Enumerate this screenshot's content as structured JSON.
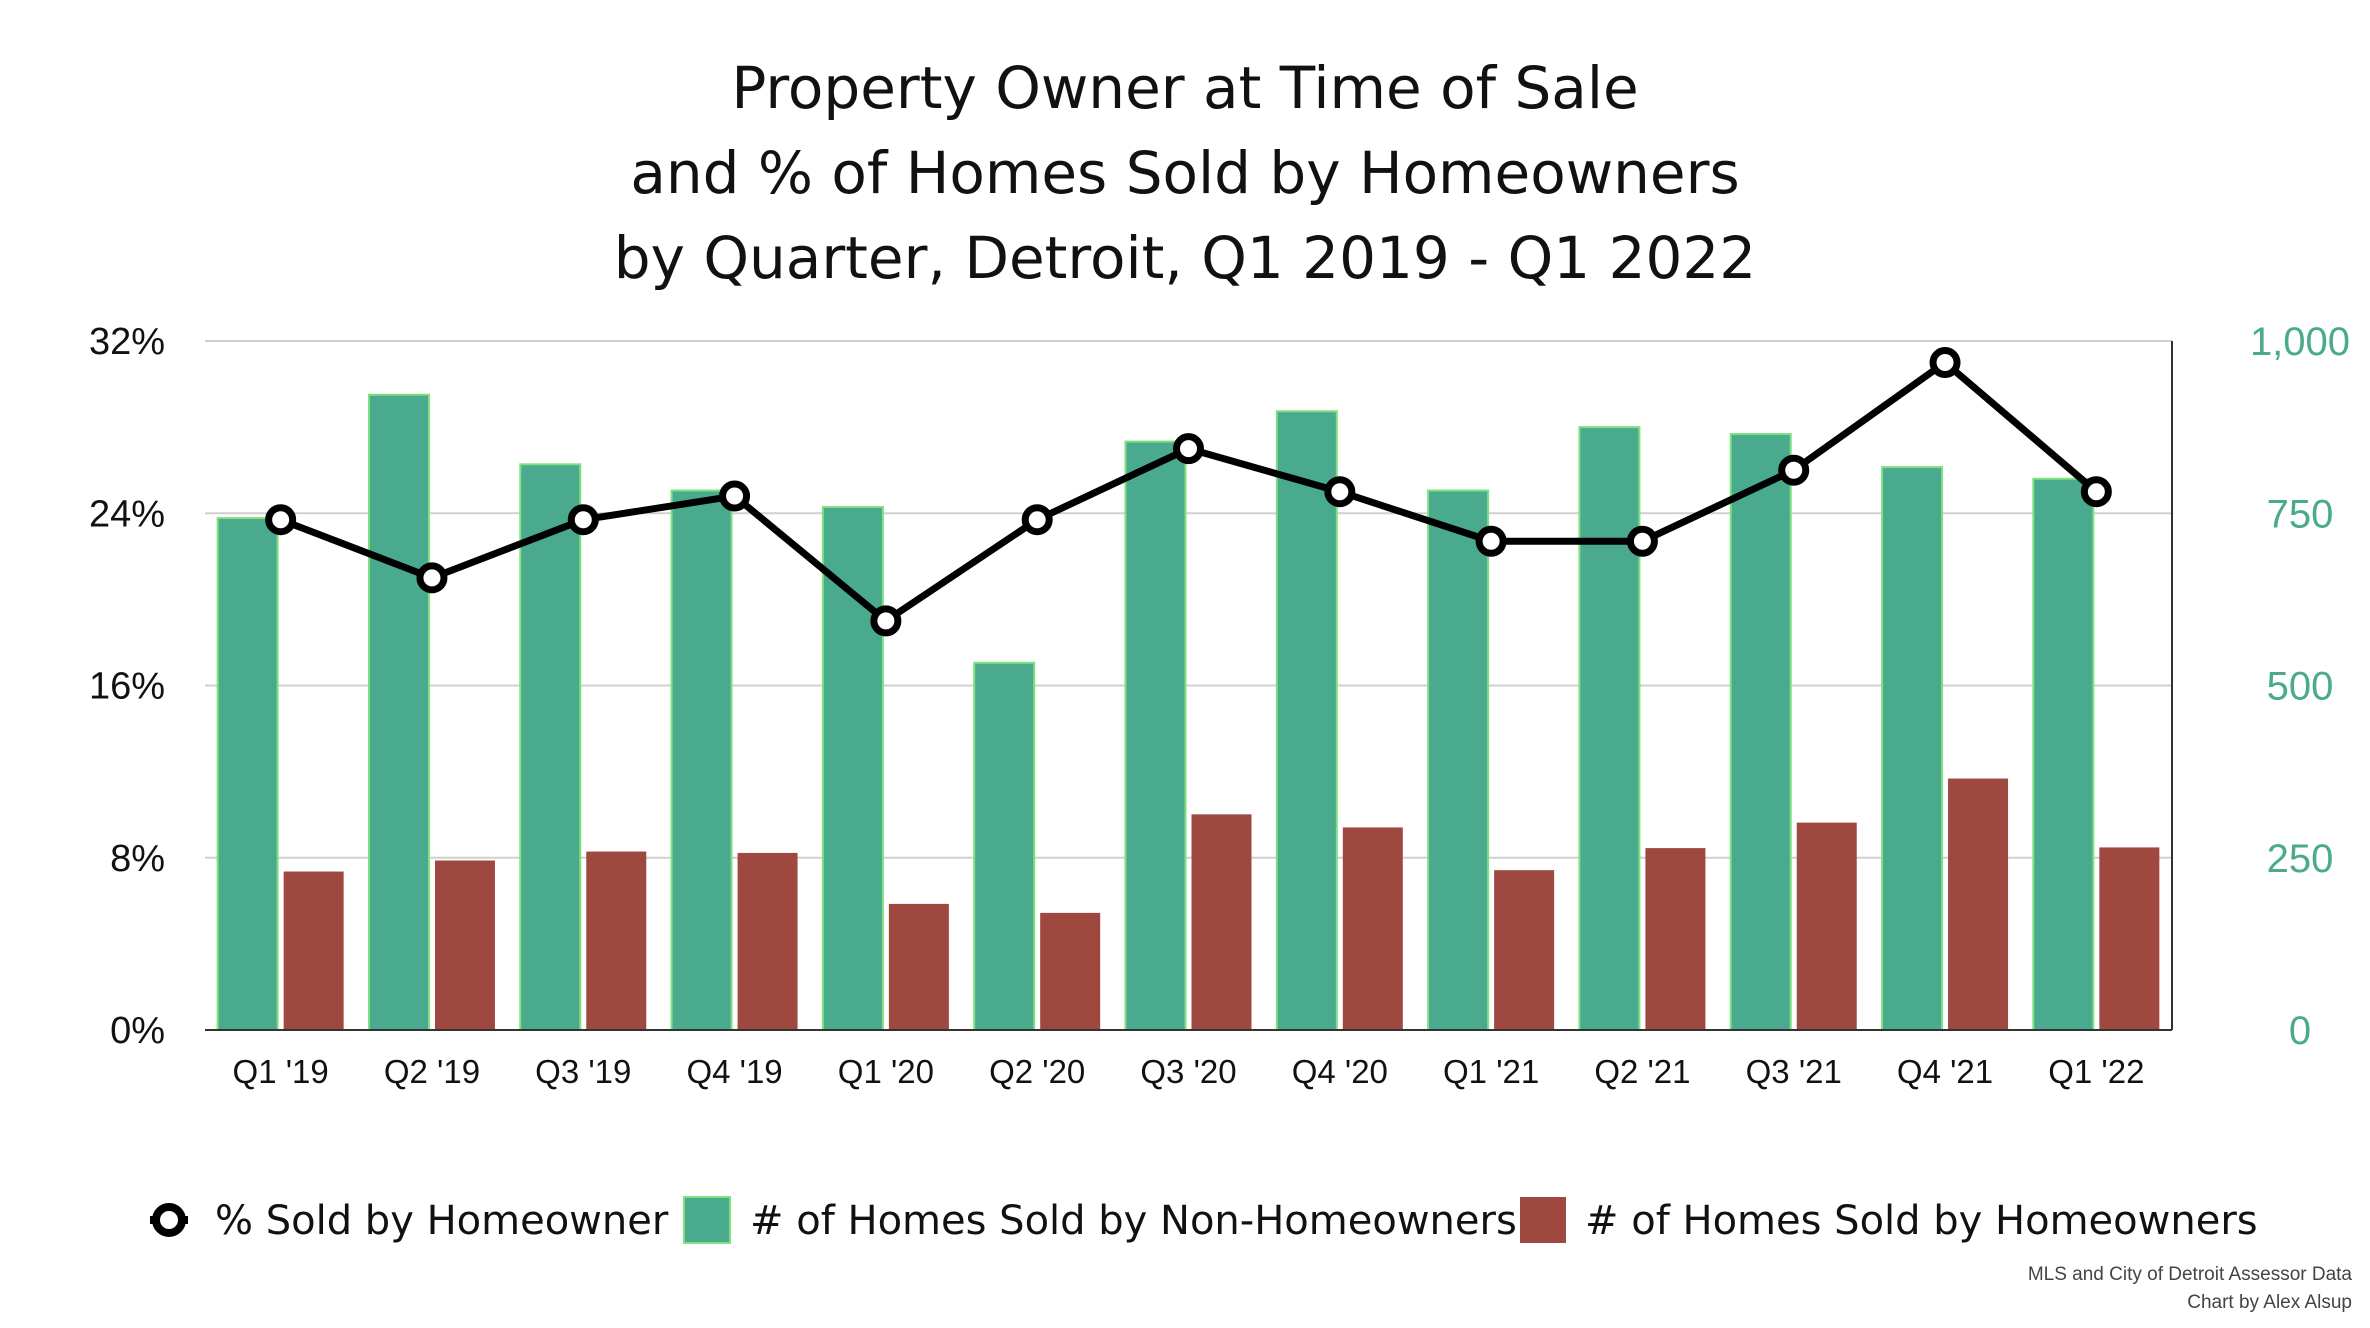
{
  "chart_data": {
    "type": "bar",
    "title_lines": [
      "Property Owner at Time of Sale",
      "and % of Homes Sold by Homeowners",
      "by Quarter, Detroit, Q1 2019 - Q1 2022"
    ],
    "categories": [
      "Q1 '19",
      "Q2 '19",
      "Q3 '19",
      "Q4 '19",
      "Q1 '20",
      "Q2 '20",
      "Q3 '20",
      "Q4 '20",
      "Q1 '21",
      "Q2 '21",
      "Q3 '21",
      "Q4 '21",
      "Q1 '22"
    ],
    "series": [
      {
        "name": "# of Homes Sold by Non-Homeowners",
        "type": "bar",
        "axis": "right",
        "color": "#4aaa8e",
        "values": [
          743,
          922,
          821,
          783,
          759,
          533,
          854,
          898,
          783,
          875,
          865,
          817,
          800
        ]
      },
      {
        "name": "# of Homes Sold by Homeowners",
        "type": "bar",
        "axis": "right",
        "color": "#9e4840",
        "values": [
          230,
          246,
          259,
          257,
          183,
          170,
          313,
          294,
          232,
          264,
          301,
          365,
          265
        ]
      },
      {
        "name": "% Sold by Homeowner",
        "type": "line",
        "axis": "left",
        "color": "#000000",
        "values": [
          23.7,
          21.0,
          23.7,
          24.8,
          19.0,
          23.7,
          27.0,
          25.0,
          22.7,
          22.7,
          26.0,
          31.0,
          25.0
        ]
      }
    ],
    "y_left": {
      "ticks": [
        "0%",
        "8%",
        "16%",
        "24%",
        "32%"
      ],
      "range": [
        0,
        32
      ]
    },
    "y_right": {
      "ticks": [
        "0",
        "250",
        "500",
        "750",
        "1,000"
      ],
      "range": [
        0,
        1000
      ],
      "color": "#4aaa8e"
    },
    "legend": [
      "% Sold by Homeowner",
      "# of Homes Sold by Non-Homeowners",
      "# of Homes Sold by Homeowners"
    ],
    "legend_position": "bottom",
    "grid": true,
    "credits": [
      "MLS and City of Detroit Assessor Data",
      "Chart by Alex Alsup"
    ]
  }
}
